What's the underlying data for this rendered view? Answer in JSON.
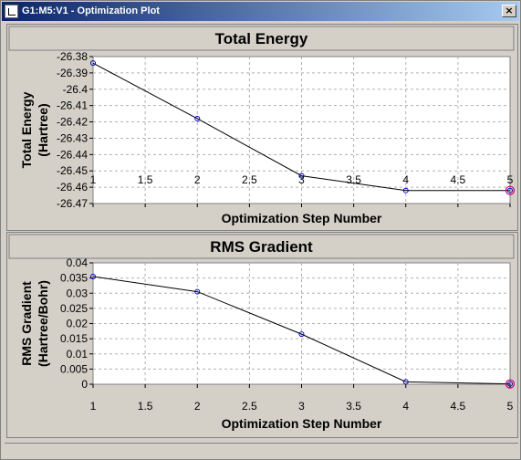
{
  "window": {
    "title": "G1:M5:V1 - Optimization Plot",
    "close_label": "×",
    "icons": {
      "app": "plot-window-icon",
      "close": "close-icon"
    }
  },
  "chart_data": [
    {
      "type": "line",
      "title": "Total Energy",
      "xlabel": "Optimization Step Number",
      "ylabel": [
        "Total Energy",
        "(Hartree)"
      ],
      "x": [
        1,
        2,
        3,
        4,
        5
      ],
      "y": [
        -26.384,
        -26.418,
        -26.453,
        -26.462,
        -26.462
      ],
      "xlim": [
        1,
        5
      ],
      "ylim": [
        -26.47,
        -26.38
      ],
      "xticks": [
        "1",
        "1.5",
        "2",
        "2.5",
        "3",
        "3.5",
        "4",
        "4.5",
        "5"
      ],
      "yticks": [
        "-26.38",
        "-26.39",
        "-26.4",
        "-26.41",
        "-26.42",
        "-26.43",
        "-26.44",
        "-26.45",
        "-26.46",
        "-26.47"
      ],
      "grid": true,
      "highlight_last_point": true
    },
    {
      "type": "line",
      "title": "RMS Gradient",
      "xlabel": "Optimization Step Number",
      "ylabel": [
        "RMS Gradient",
        "(Hartree/Bohr)"
      ],
      "x": [
        1,
        2,
        3,
        4,
        5
      ],
      "y": [
        0.0355,
        0.0305,
        0.0165,
        0.0008,
        0.0001
      ],
      "xlim": [
        1,
        5
      ],
      "ylim": [
        0,
        0.04
      ],
      "xticks": [
        "1",
        "1.5",
        "2",
        "2.5",
        "3",
        "3.5",
        "4",
        "4.5",
        "5"
      ],
      "yticks": [
        "0.04",
        "0.035",
        "0.03",
        "0.025",
        "0.02",
        "0.015",
        "0.01",
        "0.005",
        "0"
      ],
      "grid": true,
      "highlight_last_point": true
    }
  ],
  "colors": {
    "plot_bg": "#ffffff",
    "panel_bg": "#d4d0c8",
    "title_band": "#d4d0c8",
    "grid": "#b0b0b0",
    "line": "#000000",
    "marker": "#0000cc",
    "highlight": "#cc0066"
  }
}
